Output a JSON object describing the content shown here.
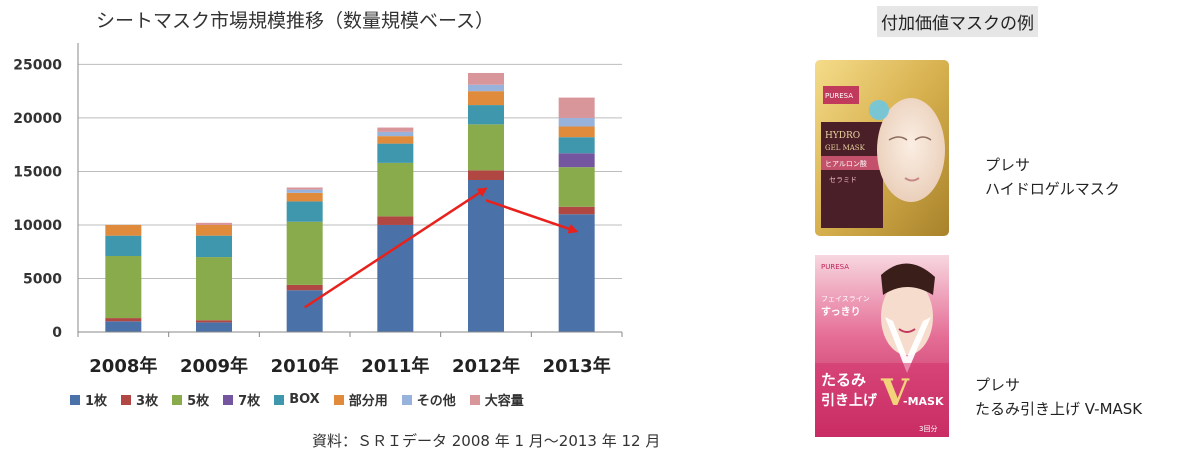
{
  "chart_data": {
    "type": "bar",
    "stacked": true,
    "title": "シートマスク市場規模推移（数量規模ベース）",
    "categories": [
      "2008年",
      "2009年",
      "2010年",
      "2011年",
      "2012年",
      "2013年"
    ],
    "ylim": [
      0,
      27000
    ],
    "yticks": [
      0,
      5000,
      10000,
      15000,
      20000,
      25000
    ],
    "grid": true,
    "legend_position": "bottom",
    "series": [
      {
        "name": "1枚",
        "color": "#4a72a8",
        "values": [
          1000,
          900,
          3900,
          10000,
          14200,
          11000
        ]
      },
      {
        "name": "3枚",
        "color": "#b04743",
        "values": [
          300,
          200,
          500,
          800,
          900,
          700
        ]
      },
      {
        "name": "5枚",
        "color": "#8aab4c",
        "values": [
          5800,
          5900,
          5900,
          5000,
          4300,
          3700
        ]
      },
      {
        "name": "7枚",
        "color": "#7456a0",
        "values": [
          0,
          0,
          0,
          0,
          0,
          1300
        ]
      },
      {
        "name": "BOX",
        "color": "#3f97ad",
        "values": [
          1900,
          2000,
          1900,
          1800,
          1800,
          1500
        ]
      },
      {
        "name": "部分用",
        "color": "#e08a3b",
        "values": [
          1000,
          1000,
          800,
          700,
          1300,
          1000
        ]
      },
      {
        "name": "その他",
        "color": "#97b3dc",
        "values": [
          0,
          0,
          300,
          400,
          600,
          800
        ]
      },
      {
        "name": "大容量",
        "color": "#d9969a",
        "values": [
          0,
          200,
          200,
          400,
          1100,
          1900
        ]
      }
    ],
    "arrows": [
      {
        "from": [
          "2010年",
          2300
        ],
        "to": [
          "2012年",
          13400
        ],
        "color": "#e8211c"
      },
      {
        "from": [
          "2012年",
          12300
        ],
        "to": [
          "2013年",
          9400
        ],
        "color": "#e8211c"
      }
    ]
  },
  "source_note": "資料：ＳＲＩデータ 2008 年 1 月～2013 年 12 月",
  "right_panel": {
    "title": "付加価値マスクの例",
    "products": [
      {
        "brand": "プレサ",
        "name": "ハイドロゲルマスク",
        "pkg": {
          "brand": "PURESA",
          "lines": [
            "HYDRO",
            "GEL MASK"
          ],
          "band": "ヒアルロン酸",
          "sub": "セラミド"
        }
      },
      {
        "brand": "プレサ",
        "name": "たるみ引き上げ V-MASK",
        "pkg": {
          "brand": "PURESA",
          "lines": [
            "フェイスライン",
            "すっきり"
          ],
          "band": "たるみ",
          "sub": "引き上げ",
          "v": "V",
          "mask": "-MASK",
          "count": "3回分"
        }
      }
    ]
  }
}
